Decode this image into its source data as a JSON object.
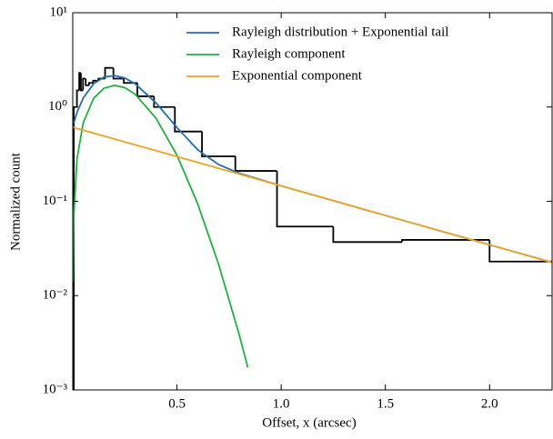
{
  "chart_data": {
    "type": "line",
    "xlabel": "Offset, x (arcsec)",
    "ylabel": "Normalized count",
    "xlim": [
      0,
      2.3
    ],
    "ylim": [
      0.001,
      10
    ],
    "log_y": true,
    "xticks": [
      0.5,
      {
        "value": 1,
        "label": "1.0"
      },
      1.5,
      {
        "value": 2,
        "label": "2.0"
      }
    ],
    "yticks": [
      {
        "value": 0.001,
        "label": "10⁻³"
      },
      {
        "value": 0.01,
        "label": "10⁻²"
      },
      {
        "value": 0.1,
        "label": "10⁻¹"
      },
      {
        "value": 1,
        "label": "10⁰"
      },
      {
        "value": 10,
        "label": "10¹"
      }
    ],
    "legend": "upper right",
    "histogram": {
      "color": "#000000",
      "bins": [
        0.005,
        0.02,
        0.031,
        0.039,
        0.049,
        0.062,
        0.078,
        0.098,
        0.123,
        0.155,
        0.195,
        0.245,
        0.31,
        0.39,
        0.49,
        0.62,
        0.78,
        0.98,
        1.25,
        1.58,
        2.0,
        2.5
      ],
      "values": [
        1.0,
        1.5,
        2.3,
        1.5,
        2.0,
        1.7,
        1.8,
        1.9,
        2.0,
        2.6,
        2.0,
        1.8,
        1.3,
        1.0,
        0.55,
        0.3,
        0.21,
        0.054,
        0.037,
        0.039,
        0.023
      ]
    },
    "series": [
      {
        "name": "Rayleigh distribution + Exponential tail",
        "color": "#1f6fb4",
        "x": [
          0.005,
          0.02,
          0.05,
          0.1,
          0.15,
          0.2,
          0.25,
          0.3,
          0.4,
          0.5,
          0.6,
          0.7,
          0.8,
          1.0,
          1.5,
          2.0,
          2.3
        ],
        "values": [
          0.676,
          0.872,
          1.246,
          1.764,
          2.076,
          2.155,
          2.028,
          1.76,
          1.101,
          0.606,
          0.351,
          0.245,
          0.198,
          0.146,
          0.0708,
          0.0346,
          0.0225
        ]
      },
      {
        "name": "Rayleigh component",
        "color": "#1db43c",
        "x": [
          0.001,
          0.005,
          0.02,
          0.05,
          0.1,
          0.15,
          0.2,
          0.25,
          0.3,
          0.4,
          0.5,
          0.6,
          0.7,
          0.8,
          0.84
        ],
        "values": [
          0.014,
          0.07,
          0.279,
          0.678,
          1.236,
          1.585,
          1.698,
          1.602,
          1.364,
          0.758,
          0.308,
          0.0933,
          0.0214,
          0.00376,
          0.00173
        ]
      },
      {
        "name": "Exponential component",
        "color": "#f5a21e",
        "x": [
          0,
          0.5,
          1.0,
          1.5,
          2.0,
          2.3
        ],
        "values": [
          0.61,
          0.298,
          0.146,
          0.0708,
          0.0346,
          0.0225
        ]
      }
    ]
  }
}
